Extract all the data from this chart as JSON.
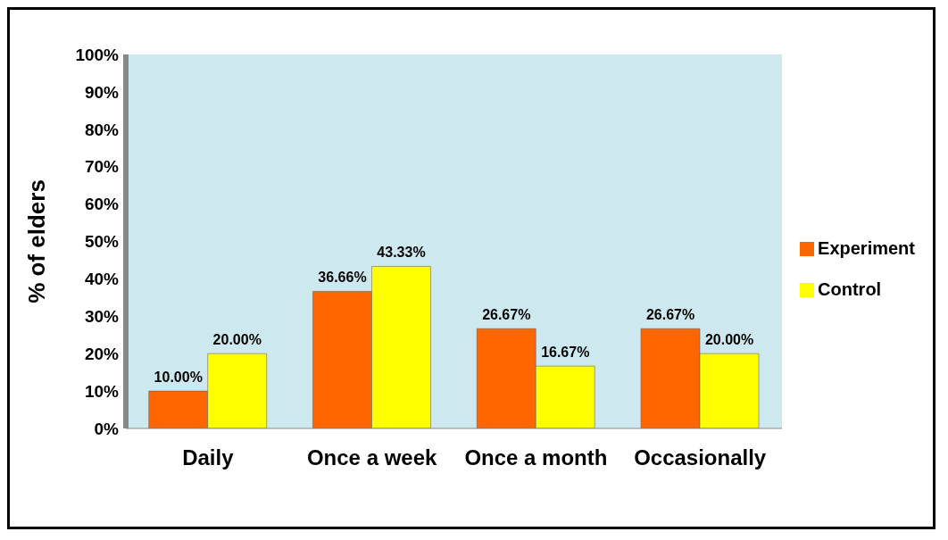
{
  "chart_data": {
    "type": "bar",
    "ylabel": "% of elders",
    "categories": [
      "Daily",
      "Once a week",
      "Once a month",
      "Occasionally"
    ],
    "series": [
      {
        "name": "Experiment",
        "color": "#ff6600",
        "values": [
          10,
          36.66,
          26.67,
          26.67
        ],
        "value_labels": [
          "10.00%",
          "36.66%",
          "26.67%",
          "26.67%"
        ]
      },
      {
        "name": "Control",
        "color": "#ffff00",
        "values": [
          20,
          43.33,
          16.67,
          20
        ],
        "value_labels": [
          "20.00%",
          "43.33%",
          "16.67%",
          "20.00%"
        ]
      }
    ],
    "ylim": [
      0,
      100
    ],
    "yticks": [
      {
        "value": 0,
        "label": "0%"
      },
      {
        "value": 10,
        "label": "10%"
      },
      {
        "value": 20,
        "label": "20%"
      },
      {
        "value": 30,
        "label": "30%"
      },
      {
        "value": 40,
        "label": "40%"
      },
      {
        "value": 50,
        "label": "50%"
      },
      {
        "value": 60,
        "label": "60%"
      },
      {
        "value": 70,
        "label": "70%"
      },
      {
        "value": 80,
        "label": "80%"
      },
      {
        "value": 90,
        "label": "90%"
      },
      {
        "value": 100,
        "label": "100%"
      }
    ],
    "legend": "right"
  }
}
